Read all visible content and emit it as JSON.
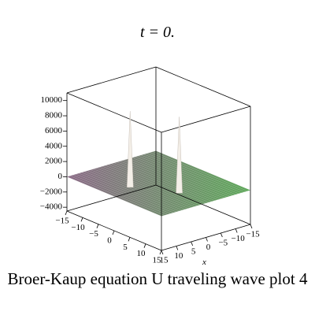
{
  "chart_data": {
    "type": "surface",
    "title": "t = 0.",
    "caption": "Broer-Kaup equation U traveling wave plot 4",
    "xlabel": "x",
    "xlim": [
      -15,
      15
    ],
    "ylim": [
      -15,
      15
    ],
    "zlim": [
      -4500,
      11000
    ],
    "xticks": [
      {
        "value": -15,
        "label": "−15"
      },
      {
        "value": -10,
        "label": "−10"
      },
      {
        "value": -5,
        "label": "−5"
      },
      0,
      5,
      10,
      15
    ],
    "yticks": [
      {
        "value": -15,
        "label": "−15"
      },
      {
        "value": -10,
        "label": "−10"
      },
      {
        "value": -5,
        "label": "−5"
      },
      0,
      5,
      10,
      15
    ],
    "zticks": [
      {
        "value": -4000,
        "label": "−4000"
      },
      {
        "value": -2000,
        "label": "−2000"
      },
      0,
      2000,
      4000,
      6000,
      8000,
      10000
    ],
    "peaks": {
      "x": [
        7.5,
        0.5
      ],
      "y": [
        -2,
        7
      ],
      "z": [
        10000,
        10000
      ]
    },
    "colors": [
      "#8a6a86",
      "#5ea85a"
    ]
  }
}
